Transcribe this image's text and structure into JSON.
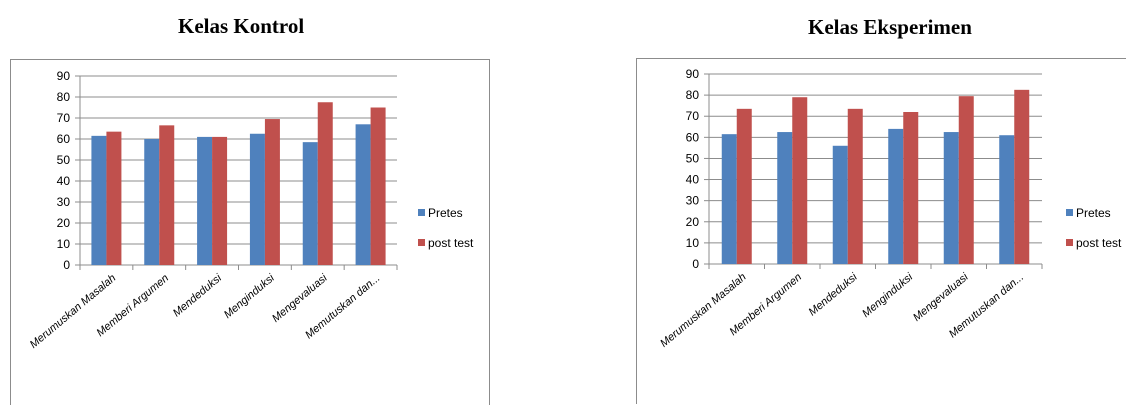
{
  "chart_data": [
    {
      "type": "bar",
      "title": "Kelas Kontrol",
      "categories": [
        "Merumuskan Masalah",
        "Memberi Argumen",
        "Mendeduksi",
        "Menginduksi",
        "Mengevaluasi",
        "Memutuskan dan..."
      ],
      "series": [
        {
          "name": "Pretes",
          "color": "#4f81bd",
          "values": [
            61.5,
            60,
            61,
            62.5,
            58.5,
            67
          ]
        },
        {
          "name": "post test",
          "color": "#c0504d",
          "values": [
            63.5,
            66.5,
            61,
            69.5,
            77.5,
            75
          ]
        }
      ],
      "ylim": [
        0,
        90
      ],
      "yticks": [
        0,
        10,
        20,
        30,
        40,
        50,
        60,
        70,
        80,
        90
      ],
      "grid": true,
      "legend": "right"
    },
    {
      "type": "bar",
      "title": "Kelas Eksperimen",
      "categories": [
        "Merumuskan Masalah",
        "Memberi Argumen",
        "Mendeduksi",
        "Menginduksi",
        "Mengevaluasi",
        "Memutuskan dan..."
      ],
      "series": [
        {
          "name": "Pretes",
          "color": "#4f81bd",
          "values": [
            61.5,
            62.5,
            56,
            64,
            62.5,
            61
          ]
        },
        {
          "name": "post test",
          "color": "#c0504d",
          "values": [
            73.5,
            79,
            73.5,
            72,
            79.5,
            82.5
          ]
        }
      ],
      "ylim": [
        0,
        90
      ],
      "yticks": [
        0,
        10,
        20,
        30,
        40,
        50,
        60,
        70,
        80,
        90
      ],
      "grid": true,
      "legend": "right"
    }
  ]
}
